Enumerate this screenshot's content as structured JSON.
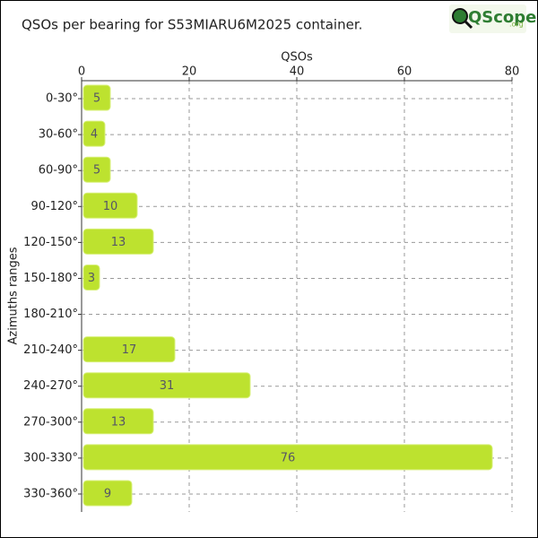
{
  "chart_data": {
    "type": "barh",
    "title": "QSOs per bearing for S53MIARU6M2025 container.",
    "logo": {
      "main": "QScope",
      "suffix": ".org"
    },
    "x_label": "QSOs",
    "y_label": "Azimuths ranges",
    "categories": [
      "0-30°",
      "30-60°",
      "60-90°",
      "90-120°",
      "120-150°",
      "150-180°",
      "180-210°",
      "210-240°",
      "240-270°",
      "270-300°",
      "300-330°",
      "330-360°"
    ],
    "values": [
      5,
      4,
      5,
      10,
      13,
      3,
      0,
      17,
      31,
      13,
      76,
      9
    ],
    "color": "#bde22f",
    "xlim": [
      0,
      80
    ],
    "xticks": [
      0,
      20,
      40,
      60,
      80
    ],
    "grid": true
  }
}
